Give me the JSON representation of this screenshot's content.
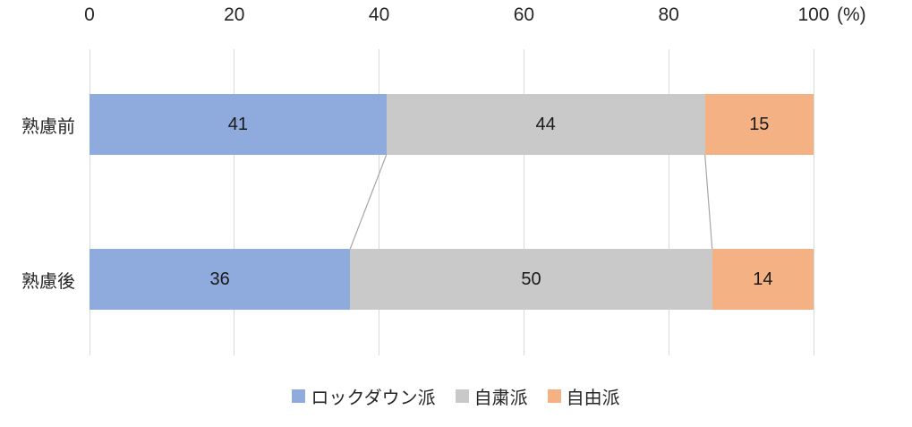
{
  "chart_data": {
    "type": "bar",
    "orientation": "horizontal-stacked",
    "title": "",
    "unit_label": "(%)",
    "categories": [
      "熟慮前",
      "熟慮後"
    ],
    "series": [
      {
        "name": "ロックダウン派",
        "color": "#8FAADC",
        "values": [
          41,
          36
        ]
      },
      {
        "name": "自粛派",
        "color": "#C9C9C9",
        "values": [
          44,
          50
        ]
      },
      {
        "name": "自由派",
        "color": "#F4B183",
        "values": [
          15,
          14
        ]
      }
    ],
    "x_ticks": [
      0,
      20,
      40,
      60,
      80,
      100
    ],
    "xlim": [
      0,
      100
    ],
    "grid": "vertical",
    "legend_position": "bottom",
    "connectors_between_bars": true
  },
  "colors": {
    "gridline": "#D9D9D9",
    "connector": "#A6A6A6",
    "axis_text": "#262626",
    "value_text": "#1a1a1a",
    "background": "#ffffff"
  }
}
